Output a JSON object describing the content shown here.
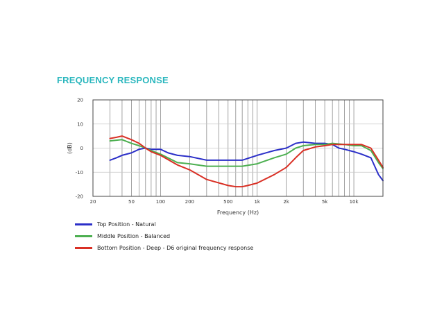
{
  "title": "FREQUENCY RESPONSE",
  "colors": {
    "title": "#2bb7be",
    "grid": "#7a7a7a",
    "frame": "#444444"
  },
  "chart_data": {
    "type": "line",
    "title": "FREQUENCY RESPONSE",
    "xlabel": "Frequency (Hz)",
    "ylabel": "(dB)",
    "x_scale": "log",
    "xlim": [
      20,
      20000
    ],
    "ylim": [
      -20,
      20
    ],
    "grid": true,
    "legend_position": "bottom-left",
    "x_tick_labels": [
      {
        "value": 20,
        "label": "20"
      },
      {
        "value": 50,
        "label": "50"
      },
      {
        "value": 100,
        "label": "100"
      },
      {
        "value": 200,
        "label": "200"
      },
      {
        "value": 500,
        "label": "500"
      },
      {
        "value": 1000,
        "label": "1k"
      },
      {
        "value": 2000,
        "label": "2k"
      },
      {
        "value": 5000,
        "label": "5k"
      },
      {
        "value": 10000,
        "label": "10k"
      }
    ],
    "y_ticks": [
      20,
      10,
      0,
      -10,
      -20
    ],
    "series": [
      {
        "name": "Top Position -  Natural",
        "color": "#2b2fc8",
        "points": [
          [
            30,
            -5
          ],
          [
            35,
            -4
          ],
          [
            40,
            -3
          ],
          [
            50,
            -2
          ],
          [
            60,
            -0.5
          ],
          [
            70,
            0
          ],
          [
            80,
            -0.5
          ],
          [
            100,
            -0.5
          ],
          [
            120,
            -2
          ],
          [
            150,
            -3
          ],
          [
            200,
            -3.5
          ],
          [
            300,
            -5
          ],
          [
            400,
            -5
          ],
          [
            500,
            -5
          ],
          [
            700,
            -5
          ],
          [
            1000,
            -3
          ],
          [
            1500,
            -1
          ],
          [
            2000,
            0
          ],
          [
            2500,
            2
          ],
          [
            3000,
            2.5
          ],
          [
            4000,
            2
          ],
          [
            5000,
            2
          ],
          [
            6000,
            1.5
          ],
          [
            7000,
            0
          ],
          [
            8000,
            -0.5
          ],
          [
            10000,
            -1.5
          ],
          [
            12000,
            -2.5
          ],
          [
            15000,
            -4
          ],
          [
            18000,
            -11
          ],
          [
            20000,
            -13.5
          ]
        ]
      },
      {
        "name": "Middle Position - Balanced",
        "color": "#4caf50",
        "points": [
          [
            30,
            3
          ],
          [
            40,
            3.5
          ],
          [
            50,
            2
          ],
          [
            60,
            1
          ],
          [
            70,
            0
          ],
          [
            80,
            -1
          ],
          [
            100,
            -2.5
          ],
          [
            150,
            -6
          ],
          [
            200,
            -6.5
          ],
          [
            300,
            -7.5
          ],
          [
            500,
            -7.5
          ],
          [
            700,
            -7.5
          ],
          [
            1000,
            -6.5
          ],
          [
            1500,
            -4
          ],
          [
            2000,
            -2.5
          ],
          [
            2500,
            0
          ],
          [
            3000,
            1
          ],
          [
            4000,
            1.5
          ],
          [
            5000,
            1.5
          ],
          [
            6000,
            2
          ],
          [
            8000,
            1.5
          ],
          [
            10000,
            1
          ],
          [
            12000,
            1
          ],
          [
            15000,
            -1
          ],
          [
            18000,
            -6
          ],
          [
            20000,
            -8.5
          ]
        ]
      },
      {
        "name": "Bottom Position - Deep - D6 original frequency response",
        "color": "#d93025",
        "points": [
          [
            30,
            4
          ],
          [
            35,
            4.5
          ],
          [
            40,
            5
          ],
          [
            50,
            3.5
          ],
          [
            60,
            2
          ],
          [
            70,
            0
          ],
          [
            80,
            -1.5
          ],
          [
            100,
            -3
          ],
          [
            150,
            -7
          ],
          [
            200,
            -9
          ],
          [
            300,
            -13
          ],
          [
            500,
            -15.5
          ],
          [
            600,
            -16
          ],
          [
            700,
            -16
          ],
          [
            800,
            -15.5
          ],
          [
            1000,
            -14.5
          ],
          [
            1500,
            -11
          ],
          [
            2000,
            -8
          ],
          [
            2500,
            -4
          ],
          [
            3000,
            -1
          ],
          [
            4000,
            0.5
          ],
          [
            5000,
            1
          ],
          [
            6000,
            1.5
          ],
          [
            8000,
            1.5
          ],
          [
            10000,
            1.5
          ],
          [
            12000,
            1.5
          ],
          [
            15000,
            0
          ],
          [
            18000,
            -5
          ],
          [
            20000,
            -8
          ]
        ]
      }
    ]
  }
}
